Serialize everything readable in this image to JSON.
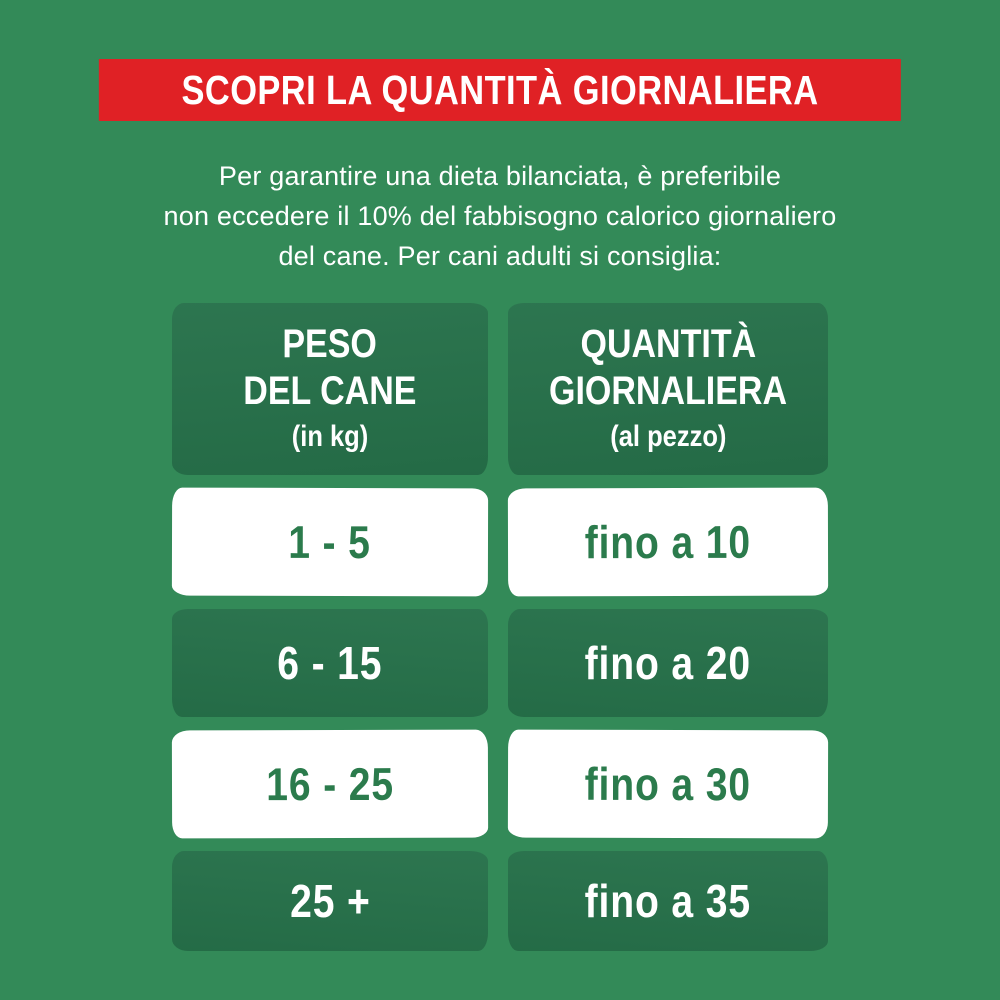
{
  "colors": {
    "background_green": "#338a58",
    "block_dark_green": "#26714a",
    "banner_red": "#e02125",
    "cell_white": "#ffffff",
    "value_green": "#2b7b4c"
  },
  "banner": {
    "title": "SCOPRI LA QUANTITÀ GIORNALIERA"
  },
  "intro": {
    "line1": "Per garantire una dieta bilanciata, è preferibile",
    "line2": "non eccedere il 10% del fabbisogno calorico giornaliero",
    "line3": "del cane. Per cani adulti si consiglia:"
  },
  "table": {
    "columns": [
      {
        "title_line1": "PESO",
        "title_line2": "DEL CANE",
        "subtitle": "(in kg)"
      },
      {
        "title_line1": "QUANTITÀ",
        "title_line2": "GIORNALIERA",
        "subtitle": "(al pezzo)"
      }
    ],
    "rows": [
      {
        "weight": "1 - 5",
        "quantity": "fino a 10"
      },
      {
        "weight": "6 - 15",
        "quantity": "fino a 20"
      },
      {
        "weight": "16 - 25",
        "quantity": "fino a 30"
      },
      {
        "weight": "25 +",
        "quantity": "fino a 35"
      }
    ]
  },
  "chart_data": {
    "type": "table",
    "title": "SCOPRI LA QUANTITÀ GIORNALIERA",
    "subtitle": "Per garantire una dieta bilanciata, è preferibile non eccedere il 10% del fabbisogno calorico giornaliero del cane. Per cani adulti si consiglia:",
    "columns": [
      "PESO DEL CANE (in kg)",
      "QUANTITÀ GIORNALIERA (al pezzo)"
    ],
    "rows": [
      [
        "1 - 5",
        "fino a 10"
      ],
      [
        "6 - 15",
        "fino a 20"
      ],
      [
        "16 - 25",
        "fino a 30"
      ],
      [
        "25 +",
        "fino a 35"
      ]
    ],
    "layout_hints": {
      "row_style_alternation": [
        "white",
        "dark-green",
        "white",
        "dark-green"
      ],
      "header_style": "dark-green painted blocks, white condensed bold text"
    }
  }
}
